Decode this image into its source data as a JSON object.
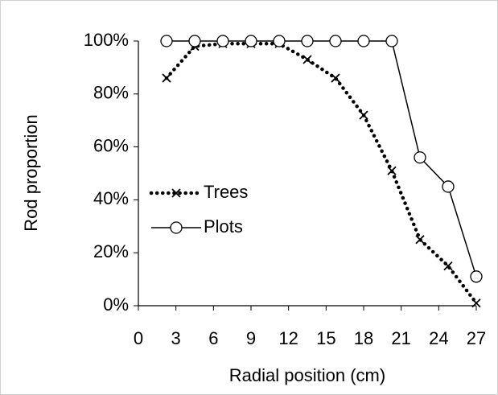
{
  "chart_data": {
    "type": "line",
    "x_label": "Radial position (cm)",
    "y_label": "Rod proportion",
    "xlim": [
      0,
      27
    ],
    "xticks": [
      0,
      3,
      6,
      9,
      12,
      15,
      18,
      21,
      24,
      27
    ],
    "ylim": [
      0,
      100
    ],
    "yticks": [
      {
        "value": 0,
        "label": "0%"
      },
      {
        "value": 20,
        "label": "20%"
      },
      {
        "value": 40,
        "label": "40%"
      },
      {
        "value": 60,
        "label": "60%"
      },
      {
        "value": 80,
        "label": "80%"
      },
      {
        "value": 100,
        "label": "100%"
      }
    ],
    "grid": false,
    "legend": "left",
    "series": [
      {
        "name": "Trees",
        "color": "#000000",
        "line_style": "dotted",
        "marker": "x",
        "x": [
          2.25,
          4.5,
          6.75,
          9,
          11.25,
          13.5,
          15.75,
          18,
          20.25,
          22.5,
          24.75,
          27
        ],
        "values": [
          86,
          98,
          99,
          99,
          99,
          93,
          86,
          72,
          51,
          25,
          15,
          1
        ]
      },
      {
        "name": "Plots",
        "color": "#000000",
        "line_style": "solid",
        "marker": "circle",
        "x": [
          2.25,
          4.5,
          6.75,
          9,
          11.25,
          13.5,
          15.75,
          18,
          20.25,
          22.5,
          24.75,
          27
        ],
        "values": [
          100,
          100,
          100,
          100,
          100,
          100,
          100,
          100,
          100,
          56,
          45,
          11
        ]
      }
    ]
  }
}
